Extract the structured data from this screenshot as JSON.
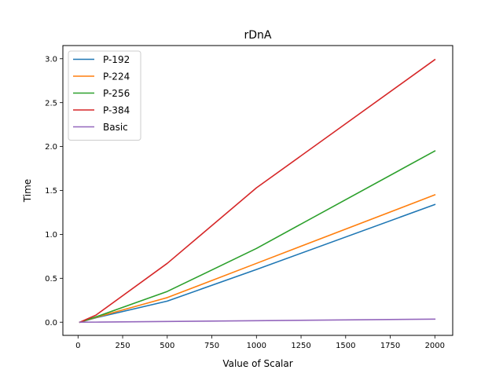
{
  "chart_data": {
    "type": "line",
    "title": "rDnA",
    "xlabel": "Value of Scalar",
    "ylabel": "Time",
    "xlim": [
      -85,
      2100
    ],
    "ylim": [
      -0.15,
      3.15
    ],
    "xticks": [
      0,
      250,
      500,
      750,
      1000,
      1250,
      1500,
      1750,
      2000
    ],
    "yticks": [
      0.0,
      0.5,
      1.0,
      1.5,
      2.0,
      2.5,
      3.0
    ],
    "xtick_labels": [
      "0",
      "250",
      "500",
      "750",
      "1000",
      "1250",
      "1500",
      "1750",
      "2000"
    ],
    "ytick_labels": [
      "0.0",
      "0.5",
      "1.0",
      "1.5",
      "2.0",
      "2.5",
      "3.0"
    ],
    "x": [
      10,
      100,
      500,
      1000,
      2000
    ],
    "grid": false,
    "legend_position": "top-left",
    "series": [
      {
        "name": "P-192",
        "color": "#1f77b4",
        "values": [
          0.0,
          0.05,
          0.24,
          0.6,
          1.34
        ]
      },
      {
        "name": "P-224",
        "color": "#ff7f0e",
        "values": [
          0.0,
          0.055,
          0.28,
          0.67,
          1.45
        ]
      },
      {
        "name": "P-256",
        "color": "#2ca02c",
        "values": [
          0.0,
          0.06,
          0.35,
          0.84,
          1.95
        ]
      },
      {
        "name": "P-384",
        "color": "#d62728",
        "values": [
          0.0,
          0.08,
          0.67,
          1.53,
          2.99
        ]
      },
      {
        "name": "Basic",
        "color": "#9467bd",
        "values": [
          0.0,
          0.001,
          0.008,
          0.017,
          0.035
        ]
      }
    ]
  }
}
